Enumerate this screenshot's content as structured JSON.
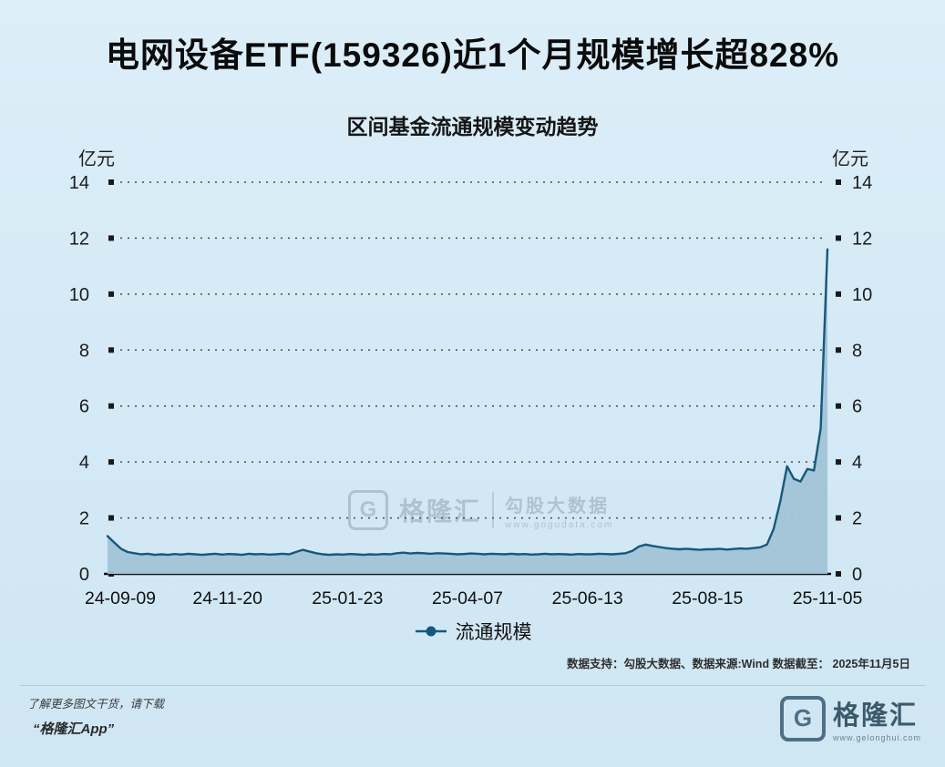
{
  "page": {
    "title": "电网设备ETF(159326)近1个月规模增长超828%",
    "data_note": "数据支持：勾股大数据、数据来源:Wind  数据截至： 2025年11月5日",
    "footer_note_line1": "了解更多图文干货，请下载",
    "footer_note_line2": "“格隆汇App”",
    "brand": {
      "logo_letter": "G",
      "name": "格隆汇",
      "url": "www.gelonghui.com"
    }
  },
  "watermark": {
    "logo_letter": "G",
    "brand": "格隆汇",
    "product": "勾股大数据",
    "url": "www.gogudata.com"
  },
  "chart_data": {
    "type": "area",
    "title": "区间基金流通规模变动趋势",
    "unit_left": "亿元",
    "unit_right": "亿元",
    "legend": [
      "流通规模"
    ],
    "ylim": [
      0,
      14
    ],
    "y_ticks": [
      0,
      2,
      4,
      6,
      8,
      10,
      12,
      14
    ],
    "x_ticks": [
      "24-09-09",
      "24-11-20",
      "25-01-23",
      "25-04-07",
      "25-06-13",
      "25-08-15",
      "25-11-05"
    ],
    "grid": "dotted-horizontal",
    "legend_position": "bottom-center",
    "series": [
      {
        "name": "流通规模",
        "values": [
          1.35,
          1.12,
          0.9,
          0.78,
          0.74,
          0.7,
          0.72,
          0.68,
          0.7,
          0.68,
          0.71,
          0.69,
          0.72,
          0.7,
          0.68,
          0.7,
          0.72,
          0.69,
          0.71,
          0.7,
          0.68,
          0.72,
          0.7,
          0.71,
          0.69,
          0.7,
          0.72,
          0.7,
          0.78,
          0.86,
          0.8,
          0.74,
          0.7,
          0.68,
          0.7,
          0.69,
          0.71,
          0.7,
          0.68,
          0.7,
          0.69,
          0.71,
          0.7,
          0.74,
          0.76,
          0.73,
          0.75,
          0.74,
          0.72,
          0.74,
          0.73,
          0.72,
          0.7,
          0.71,
          0.73,
          0.72,
          0.7,
          0.72,
          0.71,
          0.7,
          0.72,
          0.7,
          0.71,
          0.69,
          0.7,
          0.72,
          0.7,
          0.71,
          0.7,
          0.69,
          0.71,
          0.7,
          0.7,
          0.72,
          0.71,
          0.7,
          0.72,
          0.74,
          0.82,
          0.98,
          1.05,
          1.0,
          0.96,
          0.92,
          0.9,
          0.88,
          0.9,
          0.88,
          0.86,
          0.88,
          0.88,
          0.9,
          0.87,
          0.89,
          0.91,
          0.9,
          0.92,
          0.95,
          1.05,
          1.6,
          2.6,
          3.85,
          3.4,
          3.3,
          3.75,
          3.7,
          5.2,
          11.6
        ]
      }
    ],
    "colors": {
      "line": "#16587e",
      "fill": "#a2c3d7",
      "background": "#d5eaf6",
      "grid": "#4a4a4a",
      "tick_square": "#1a1a1a"
    }
  }
}
